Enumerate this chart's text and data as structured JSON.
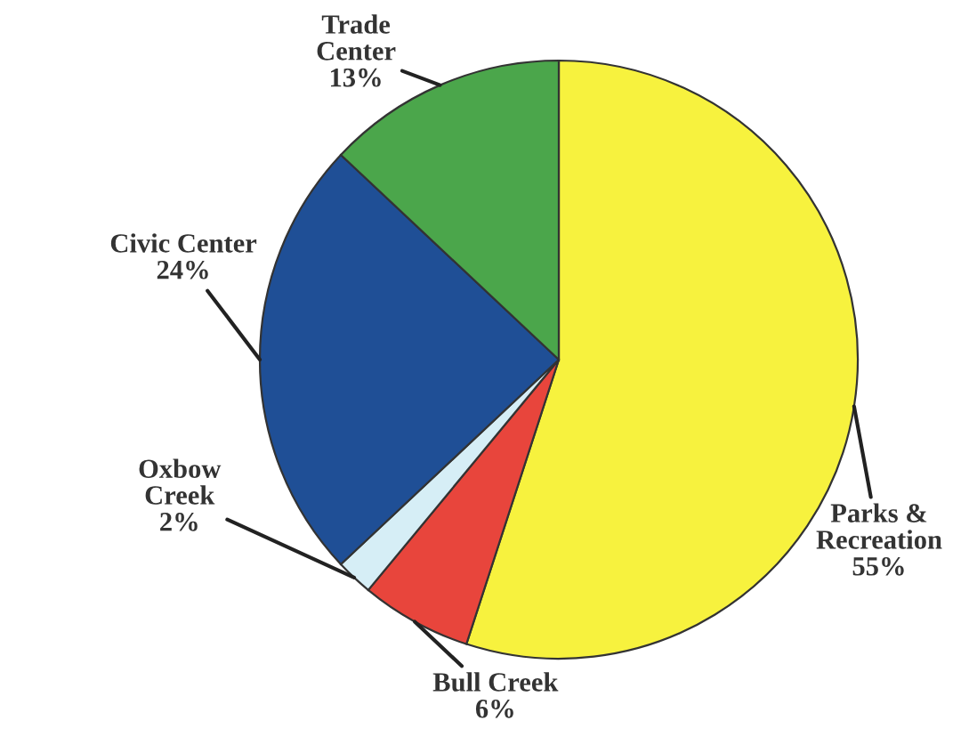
{
  "chart_data": {
    "type": "pie",
    "categories": [
      "Parks &\nRecreation",
      "Bull Creek",
      "Oxbow\nCreek",
      "Civic Center",
      "Trade\nCenter"
    ],
    "values": [
      55,
      6,
      2,
      24,
      13
    ],
    "value_labels": [
      "55%",
      "6%",
      "2%",
      "24%",
      "13%"
    ],
    "colors": [
      "#f7f23e",
      "#e8453c",
      "#d6eef6",
      "#1f4f96",
      "#4ba64b"
    ]
  }
}
